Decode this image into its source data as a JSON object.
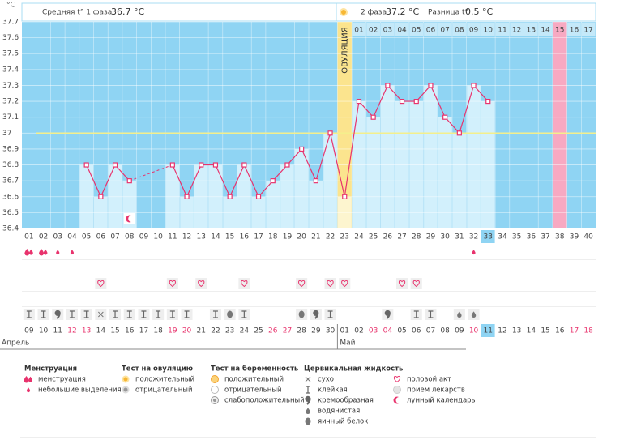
{
  "header": {
    "phase1_label": "Средняя t° 1 фаза",
    "phase1_value": "36.7 °C",
    "phase2_label": "2 фаза",
    "phase2_value": "37.2 °C",
    "diff_label": "Разница t°",
    "diff_value": "0.5 °C"
  },
  "chart_data": {
    "type": "line",
    "y_unit": "°C",
    "categories": [
      "01",
      "02",
      "03",
      "04",
      "05",
      "06",
      "07",
      "08",
      "09",
      "10",
      "11",
      "12",
      "13",
      "14",
      "15",
      "16",
      "17",
      "18",
      "19",
      "20",
      "21",
      "22",
      "23",
      "24",
      "25",
      "26",
      "27",
      "28",
      "29",
      "30",
      "31",
      "32",
      "33",
      "34",
      "35",
      "36",
      "37",
      "38",
      "39",
      "40"
    ],
    "values": [
      null,
      null,
      null,
      null,
      36.8,
      36.6,
      36.8,
      36.7,
      null,
      null,
      36.8,
      36.6,
      36.8,
      36.8,
      36.6,
      36.8,
      36.6,
      36.7,
      36.8,
      36.9,
      36.7,
      37,
      36.6,
      37.2,
      37.1,
      37.3,
      37.2,
      37.2,
      37.3,
      37.1,
      37,
      37.3,
      37.2,
      null,
      null,
      null,
      null,
      null,
      null,
      null
    ],
    "color": "#e8336d",
    "bar_color": "#d2f0fc",
    "background": "#8fd4f3",
    "ylim": [
      36.4,
      37.7
    ],
    "yticks": [
      36.4,
      36.5,
      36.6,
      36.7,
      36.8,
      36.9,
      37,
      37.1,
      37.2,
      37.3,
      37.4,
      37.5,
      37.6,
      37.7
    ],
    "grid": true,
    "coverline": 37,
    "coverline_color": "#f4ef8c",
    "ovulation": {
      "label": "ОВУЛЯЦИЯ",
      "day": "23",
      "color": "#fbe48e"
    },
    "phase2_days": [
      null,
      null,
      null,
      null,
      null,
      null,
      null,
      null,
      null,
      null,
      null,
      null,
      null,
      null,
      null,
      null,
      null,
      null,
      null,
      null,
      null,
      null,
      null,
      "01",
      "02",
      "03",
      "04",
      "05",
      "06",
      "07",
      "08",
      "09",
      "10",
      "11",
      "12",
      "13",
      "14",
      "15",
      "16",
      "17"
    ],
    "highlight_day": {
      "day": "38",
      "color": "#f7a9c2"
    },
    "today": "33",
    "moon_day": "08",
    "weekend_color": "#e8336d",
    "dates": [
      {
        "label": "09",
        "weekend": false
      },
      {
        "label": "10",
        "weekend": false
      },
      {
        "label": "11",
        "weekend": false
      },
      {
        "label": "12",
        "weekend": true
      },
      {
        "label": "13",
        "weekend": true
      },
      {
        "label": "14",
        "weekend": false
      },
      {
        "label": "15",
        "weekend": false
      },
      {
        "label": "16",
        "weekend": false
      },
      {
        "label": "17",
        "weekend": false
      },
      {
        "label": "18",
        "weekend": false
      },
      {
        "label": "19",
        "weekend": true
      },
      {
        "label": "20",
        "weekend": true
      },
      {
        "label": "21",
        "weekend": false
      },
      {
        "label": "22",
        "weekend": false
      },
      {
        "label": "23",
        "weekend": false
      },
      {
        "label": "24",
        "weekend": false
      },
      {
        "label": "25",
        "weekend": false
      },
      {
        "label": "26",
        "weekend": true
      },
      {
        "label": "27",
        "weekend": true
      },
      {
        "label": "28",
        "weekend": false
      },
      {
        "label": "29",
        "weekend": false
      },
      {
        "label": "30",
        "weekend": false
      },
      {
        "label": "01",
        "weekend": false
      },
      {
        "label": "02",
        "weekend": false
      },
      {
        "label": "03",
        "weekend": true
      },
      {
        "label": "04",
        "weekend": true
      },
      {
        "label": "05",
        "weekend": false
      },
      {
        "label": "06",
        "weekend": false
      },
      {
        "label": "07",
        "weekend": false
      },
      {
        "label": "08",
        "weekend": false
      },
      {
        "label": "09",
        "weekend": false
      },
      {
        "label": "10",
        "weekend": true
      },
      {
        "label": "11",
        "weekend": false
      },
      {
        "label": "12",
        "weekend": false
      },
      {
        "label": "13",
        "weekend": false
      },
      {
        "label": "14",
        "weekend": false
      },
      {
        "label": "15",
        "weekend": false
      },
      {
        "label": "16",
        "weekend": false
      },
      {
        "label": "17",
        "weekend": true
      },
      {
        "label": "18",
        "weekend": true
      }
    ],
    "months": [
      "Апрель",
      "Май"
    ],
    "symbol_rows": [
      [
        "heavy",
        "heavy",
        "light",
        "light",
        null,
        null,
        null,
        null,
        null,
        null,
        null,
        null,
        null,
        null,
        null,
        null,
        null,
        null,
        null,
        null,
        null,
        null,
        null,
        null,
        null,
        null,
        null,
        null,
        null,
        null,
        null,
        "light",
        null,
        null,
        null,
        null,
        null,
        null,
        null,
        null
      ],
      [
        null,
        null,
        null,
        null,
        null,
        "sex",
        null,
        null,
        null,
        null,
        "sex",
        null,
        "sex",
        null,
        null,
        "sex",
        null,
        null,
        null,
        "sex",
        null,
        "sex",
        "sex",
        null,
        null,
        null,
        "sex",
        "sex",
        null,
        null,
        null,
        null,
        null,
        null,
        null,
        null,
        null,
        null,
        null,
        null
      ],
      [
        "sticky",
        "sticky",
        "creamy",
        "sticky",
        "sticky",
        "dry",
        "sticky",
        "sticky",
        "sticky",
        "sticky",
        "sticky",
        "sticky",
        null,
        "sticky",
        "egg",
        "sticky",
        null,
        null,
        null,
        "egg",
        "creamy",
        "sticky",
        null,
        null,
        null,
        "creamy",
        null,
        "sticky",
        "sticky",
        null,
        "watery",
        "watery",
        null,
        null,
        null,
        null,
        null,
        null,
        null,
        null
      ]
    ]
  },
  "legend": [
    {
      "title": "Менструация",
      "items": [
        {
          "icon": "heavy",
          "label": "менструация"
        },
        {
          "icon": "light",
          "label": "небольшие выделения"
        }
      ]
    },
    {
      "title": "Тест на овуляцию",
      "items": [
        {
          "icon": "ov_pos",
          "label": "положительный"
        },
        {
          "icon": "ov_neg",
          "label": "отрицательный"
        }
      ]
    },
    {
      "title": "Тест на беременность",
      "items": [
        {
          "icon": "preg_pos",
          "label": "положительный"
        },
        {
          "icon": "preg_neg",
          "label": "отрицательный"
        },
        {
          "icon": "preg_weak",
          "label": "слабоположительный"
        }
      ]
    },
    {
      "title": "Цервикальная жидкость",
      "items": [
        {
          "icon": "dry",
          "label": "сухо"
        },
        {
          "icon": "sticky",
          "label": "клейкая"
        },
        {
          "icon": "creamy",
          "label": "кремообразная"
        },
        {
          "icon": "watery",
          "label": "водянистая"
        },
        {
          "icon": "egg",
          "label": "яичный белок"
        }
      ]
    },
    {
      "items": [
        {
          "icon": "sex",
          "label": "половой акт"
        },
        {
          "icon": "pill",
          "label": "прием лекарств"
        },
        {
          "icon": "moon",
          "label": "лунный календарь"
        }
      ]
    }
  ]
}
